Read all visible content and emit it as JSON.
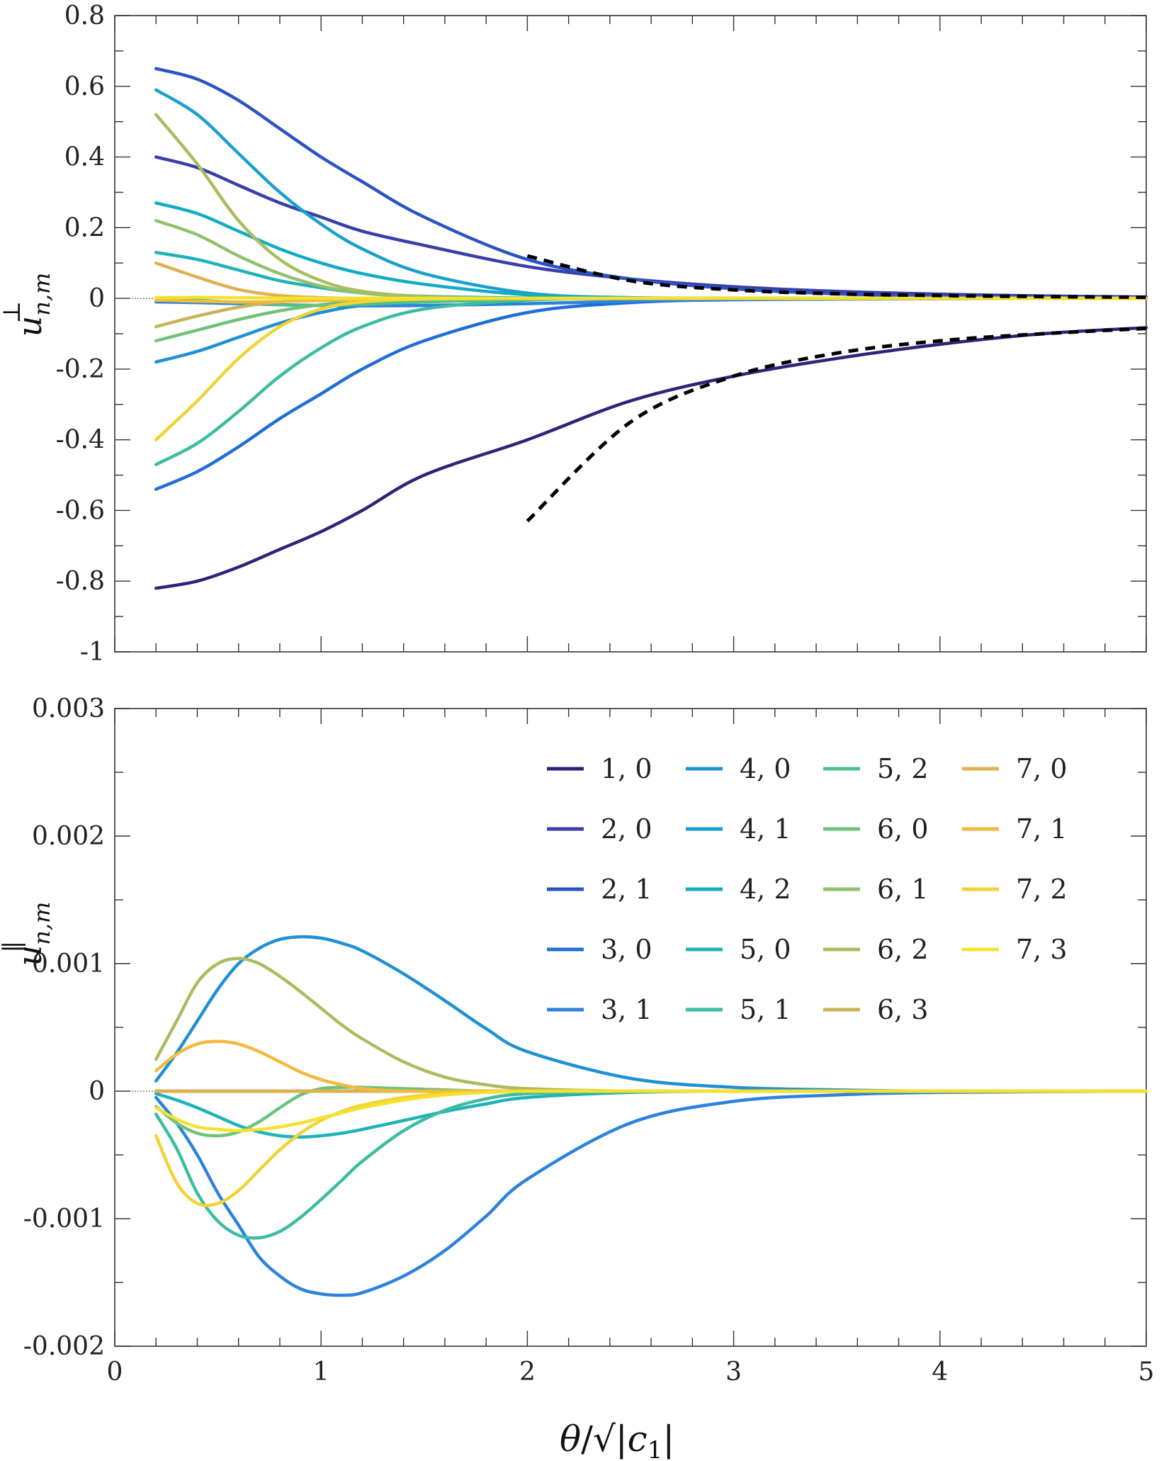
{
  "chart_data": [
    {
      "type": "line",
      "panel": "top",
      "ylabel": "u⊥n,m",
      "xlim": [
        0,
        5
      ],
      "ylim": [
        -1,
        0.8
      ],
      "yticks": [
        -1,
        -0.8,
        -0.6,
        -0.4,
        -0.2,
        0,
        0.2,
        0.4,
        0.6,
        0.8
      ],
      "ytick_labels": [
        "-1",
        "-0.8",
        "-0.6",
        "-0.4",
        "-0.2",
        "0",
        "0.2",
        "0.4",
        "0.6",
        "0.8"
      ],
      "x_sample": [
        0.2,
        0.4,
        0.6,
        0.8,
        1.0,
        1.2,
        1.5,
        2.0,
        2.5,
        3.0,
        3.5,
        4.0,
        4.5,
        5.0
      ],
      "series": [
        {
          "name": "1, 0",
          "color": "#2d2478",
          "values": [
            -0.82,
            -0.8,
            -0.76,
            -0.71,
            -0.66,
            -0.6,
            -0.5,
            -0.4,
            -0.29,
            -0.22,
            -0.17,
            -0.13,
            -0.1,
            -0.083
          ]
        },
        {
          "name": "2, 0",
          "color": "#3a3ea8",
          "values": [
            0.4,
            0.37,
            0.32,
            0.27,
            0.23,
            0.19,
            0.15,
            0.09,
            0.055,
            0.033,
            0.02,
            0.012,
            0.007,
            0.004
          ]
        },
        {
          "name": "2, 1",
          "color": "#2a53c6",
          "values": [
            0.65,
            0.62,
            0.56,
            0.48,
            0.4,
            0.33,
            0.23,
            0.11,
            0.055,
            0.027,
            0.013,
            0.006,
            0.003,
            0.001
          ]
        },
        {
          "name": "3, 0",
          "color": "#1f6ed6",
          "values": [
            -0.54,
            -0.49,
            -0.42,
            -0.34,
            -0.27,
            -0.2,
            -0.12,
            -0.04,
            -0.012,
            -0.003,
            -0.001,
            0,
            0,
            0
          ]
        },
        {
          "name": "3, 1",
          "color": "#2d82dd",
          "values": [
            -0.01,
            -0.012,
            -0.015,
            -0.018,
            -0.02,
            -0.021,
            -0.02,
            -0.015,
            -0.008,
            -0.004,
            -0.002,
            -0.001,
            0,
            0
          ]
        },
        {
          "name": "4, 0",
          "color": "#2090d4",
          "values": [
            -0.18,
            -0.15,
            -0.11,
            -0.07,
            -0.04,
            -0.02,
            -0.01,
            -0.002,
            0,
            0,
            0,
            0,
            0,
            0
          ]
        },
        {
          "name": "4, 1",
          "color": "#1aa0cc",
          "values": [
            0.59,
            0.52,
            0.41,
            0.3,
            0.21,
            0.14,
            0.07,
            0.015,
            0.002,
            0,
            0,
            0,
            0,
            0
          ]
        },
        {
          "name": "4, 2",
          "color": "#12abc4",
          "values": [
            0.27,
            0.24,
            0.19,
            0.14,
            0.1,
            0.07,
            0.04,
            0.01,
            0.002,
            0,
            0,
            0,
            0,
            0
          ]
        },
        {
          "name": "5, 0",
          "color": "#1eb3b8",
          "values": [
            0.13,
            0.11,
            0.08,
            0.05,
            0.03,
            0.015,
            0.006,
            0.001,
            0,
            0,
            0,
            0,
            0,
            0
          ]
        },
        {
          "name": "5, 1",
          "color": "#3cbca0",
          "values": [
            -0.47,
            -0.41,
            -0.32,
            -0.22,
            -0.14,
            -0.08,
            -0.03,
            -0.005,
            0,
            0,
            0,
            0,
            0,
            0
          ]
        },
        {
          "name": "5, 2",
          "color": "#4fc08a",
          "values": [
            0,
            -0.005,
            -0.012,
            -0.018,
            -0.02,
            -0.017,
            -0.01,
            -0.003,
            0,
            0,
            0,
            0,
            0,
            0
          ]
        },
        {
          "name": "6, 0",
          "color": "#6ec27a",
          "values": [
            -0.12,
            -0.09,
            -0.06,
            -0.035,
            -0.018,
            -0.008,
            -0.002,
            0,
            0,
            0,
            0,
            0,
            0,
            0
          ]
        },
        {
          "name": "6, 1",
          "color": "#90c26c",
          "values": [
            0.22,
            0.18,
            0.12,
            0.07,
            0.035,
            0.015,
            0.004,
            0,
            0,
            0,
            0,
            0,
            0,
            0
          ]
        },
        {
          "name": "6, 2",
          "color": "#a8bd5f",
          "values": [
            0.52,
            0.38,
            0.22,
            0.11,
            0.05,
            0.02,
            0.005,
            0,
            0,
            0,
            0,
            0,
            0,
            0
          ]
        },
        {
          "name": "6, 3",
          "color": "#c9b35a",
          "values": [
            -0.08,
            -0.05,
            -0.025,
            -0.01,
            -0.003,
            0,
            0,
            0,
            0,
            0,
            0,
            0,
            0,
            0
          ]
        },
        {
          "name": "7, 0",
          "color": "#e0b050",
          "values": [
            0.1,
            0.06,
            0.025,
            0.008,
            0.002,
            0,
            0,
            0,
            0,
            0,
            0,
            0,
            0,
            0
          ]
        },
        {
          "name": "7, 1",
          "color": "#f2ba3e",
          "values": [
            -0.005,
            -0.008,
            -0.01,
            -0.009,
            -0.006,
            -0.004,
            -0.001,
            0,
            0,
            0,
            0,
            0,
            0,
            0
          ]
        },
        {
          "name": "7, 2",
          "color": "#f4d233",
          "values": [
            -0.4,
            -0.29,
            -0.17,
            -0.08,
            -0.03,
            -0.01,
            -0.002,
            0,
            0,
            0,
            0,
            0,
            0,
            0
          ]
        },
        {
          "name": "7, 3",
          "color": "#f5e22f",
          "values": [
            0.002,
            0.003,
            0.002,
            0.001,
            0,
            0,
            0,
            0,
            0,
            0,
            0,
            0,
            0,
            0
          ]
        }
      ],
      "asymptotes": [
        {
          "x": [
            2.0,
            2.5,
            3.0,
            3.5,
            4.0,
            4.5,
            5.0
          ],
          "values": [
            0.12,
            0.05,
            0.024,
            0.013,
            0.008,
            0.005,
            0.003
          ]
        },
        {
          "x": [
            2.0,
            2.5,
            3.0,
            3.5,
            4.0,
            4.5,
            5.0
          ],
          "values": [
            -0.63,
            -0.35,
            -0.22,
            -0.155,
            -0.12,
            -0.1,
            -0.085
          ]
        }
      ]
    },
    {
      "type": "line",
      "panel": "bottom",
      "ylabel": "u‖n,m",
      "xlabel": "θ/√|c1|",
      "xlim": [
        0,
        5
      ],
      "ylim": [
        -0.002,
        0.003
      ],
      "xticks": [
        0,
        1,
        2,
        3,
        4,
        5
      ],
      "xtick_labels": [
        "0",
        "1",
        "2",
        "3",
        "4",
        "5"
      ],
      "yticks": [
        -0.002,
        -0.001,
        0,
        0.001,
        0.002,
        0.003
      ],
      "ytick_labels": [
        "-0.002",
        "-0.001",
        "0",
        "0.001",
        "0.002",
        "0.003"
      ],
      "legend_placement": "upper-right",
      "x_sample": [
        0.2,
        0.3,
        0.4,
        0.5,
        0.6,
        0.7,
        0.8,
        0.9,
        1.0,
        1.1,
        1.2,
        1.4,
        1.6,
        1.8,
        2.0,
        2.5,
        3.0,
        3.5,
        4.0,
        5.0
      ],
      "series": [
        {
          "name": "1, 0",
          "color": "#2d2478",
          "values": [
            0,
            0,
            0,
            0,
            0,
            0,
            0,
            0,
            0,
            0,
            0,
            0,
            0,
            0,
            0,
            0,
            0,
            0,
            0,
            0
          ]
        },
        {
          "name": "2, 0",
          "color": "#3a3ea8",
          "values": [
            0,
            0,
            0,
            0,
            0,
            0,
            0,
            0,
            0,
            0,
            0,
            0,
            0,
            0,
            0,
            0,
            0,
            0,
            0,
            0
          ]
        },
        {
          "name": "2, 1",
          "color": "#2a53c6",
          "values": [
            0,
            0,
            0,
            0,
            0,
            0,
            0,
            0,
            0,
            0,
            0,
            0,
            0,
            0,
            0,
            0,
            0,
            0,
            0,
            0
          ]
        },
        {
          "name": "3, 0",
          "color": "#1f6ed6",
          "values": [
            0,
            0,
            0,
            0,
            0,
            0,
            0,
            0,
            0,
            0,
            0,
            0,
            0,
            0,
            0,
            0,
            0,
            0,
            0,
            0
          ]
        },
        {
          "name": "3, 1",
          "color": "#2d82dd",
          "values": [
            -5e-05,
            -0.00025,
            -0.0005,
            -0.0008,
            -0.00105,
            -0.0013,
            -0.00145,
            -0.00155,
            -0.00159,
            -0.0016,
            -0.00158,
            -0.00145,
            -0.00125,
            -0.00098,
            -0.00069,
            -0.00025,
            -8e-05,
            -3e-05,
            -1e-05,
            0
          ]
        },
        {
          "name": "4, 0",
          "color": "#2090d4",
          "values": [
            8e-05,
            0.0003,
            0.00055,
            0.0008,
            0.001,
            0.00112,
            0.00119,
            0.00121,
            0.0012,
            0.00116,
            0.0011,
            0.00092,
            0.00071,
            0.00049,
            0.00031,
            0.0001,
            3e-05,
            1e-05,
            0,
            0
          ]
        },
        {
          "name": "4, 1",
          "color": "#1aa0cc",
          "values": [
            0,
            0,
            0,
            0,
            0,
            0,
            0,
            0,
            0,
            0,
            0,
            0,
            0,
            0,
            0,
            0,
            0,
            0,
            0,
            0
          ]
        },
        {
          "name": "4, 2",
          "color": "#12abc4",
          "values": [
            0,
            0,
            0,
            0,
            0,
            0,
            0,
            0,
            0,
            0,
            0,
            0,
            0,
            0,
            0,
            0,
            0,
            0,
            0,
            0
          ]
        },
        {
          "name": "5, 0",
          "color": "#1eb3b8",
          "values": [
            -2e-05,
            -7e-05,
            -0.00013,
            -0.0002,
            -0.00027,
            -0.00032,
            -0.00035,
            -0.00036,
            -0.00035,
            -0.00033,
            -0.0003,
            -0.00023,
            -0.00016,
            -0.0001,
            -5e-05,
            -1e-05,
            0,
            0,
            0,
            0
          ]
        },
        {
          "name": "5, 1",
          "color": "#3cbca0",
          "values": [
            -0.00018,
            -0.00045,
            -0.0008,
            -0.00102,
            -0.00113,
            -0.00115,
            -0.0011,
            -0.00099,
            -0.00085,
            -0.0007,
            -0.00055,
            -0.00031,
            -0.00015,
            -6e-05,
            -2e-05,
            0,
            0,
            0,
            0,
            0
          ]
        },
        {
          "name": "5, 2",
          "color": "#4fc08a",
          "values": [
            0,
            0,
            0,
            0,
            0,
            0,
            0,
            0,
            0,
            0,
            0,
            0,
            0,
            0,
            0,
            0,
            0,
            0,
            0,
            0
          ]
        },
        {
          "name": "6, 0",
          "color": "#6ec27a",
          "values": [
            -0.00012,
            -0.00025,
            -0.00033,
            -0.00035,
            -0.00032,
            -0.00024,
            -0.00013,
            -3e-05,
            2e-05,
            3e-05,
            3e-05,
            2e-05,
            1e-05,
            0,
            0,
            0,
            0,
            0,
            0,
            0
          ]
        },
        {
          "name": "6, 1",
          "color": "#90c26c",
          "values": [
            0,
            0,
            0,
            0,
            0,
            0,
            0,
            0,
            0,
            0,
            0,
            0,
            0,
            0,
            0,
            0,
            0,
            0,
            0,
            0
          ]
        },
        {
          "name": "6, 2",
          "color": "#a8bd5f",
          "values": [
            0.00025,
            0.00055,
            0.00085,
            0.001,
            0.00104,
            0.001,
            0.0009,
            0.00078,
            0.00065,
            0.00052,
            0.00041,
            0.00023,
            0.00011,
            5e-05,
            2e-05,
            0,
            0,
            0,
            0,
            0
          ]
        },
        {
          "name": "6, 3",
          "color": "#c9b35a",
          "values": [
            0,
            0,
            0,
            0,
            0,
            0,
            0,
            0,
            0,
            0,
            0,
            0,
            0,
            0,
            0,
            0,
            0,
            0,
            0,
            0
          ]
        },
        {
          "name": "7, 0",
          "color": "#e0b050",
          "values": [
            0,
            0,
            0,
            0,
            0,
            0,
            0,
            0,
            0,
            0,
            0,
            0,
            0,
            0,
            0,
            0,
            0,
            0,
            0,
            0
          ]
        },
        {
          "name": "7, 1",
          "color": "#f2ba3e",
          "values": [
            0.00016,
            0.00029,
            0.00037,
            0.00039,
            0.00037,
            0.00031,
            0.00023,
            0.00015,
            9e-05,
            5e-05,
            2e-05,
            0,
            0,
            0,
            0,
            0,
            0,
            0,
            0,
            0
          ]
        },
        {
          "name": "7, 2",
          "color": "#f4d233",
          "values": [
            -0.00035,
            -0.00072,
            -0.00088,
            -0.00088,
            -0.00078,
            -0.00062,
            -0.00046,
            -0.00033,
            -0.00023,
            -0.00016,
            -0.00011,
            -5e-05,
            -2e-05,
            -1e-05,
            0,
            0,
            0,
            0,
            0,
            0
          ]
        },
        {
          "name": "7, 3",
          "color": "#f5e22f",
          "values": [
            -0.00013,
            -0.00022,
            -0.00028,
            -0.0003,
            -0.00031,
            -0.0003,
            -0.00028,
            -0.00025,
            -0.00021,
            -0.00017,
            -0.00013,
            -7e-05,
            -3e-05,
            -1e-05,
            0,
            0,
            0,
            0,
            0,
            0
          ]
        }
      ]
    }
  ]
}
